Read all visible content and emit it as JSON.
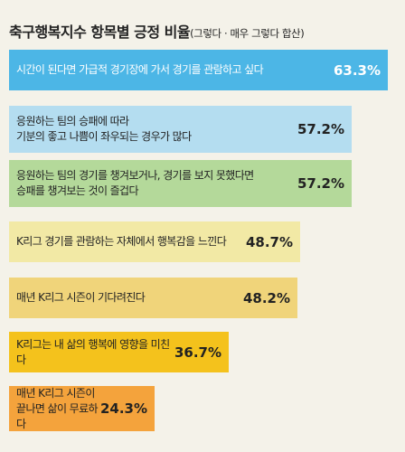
{
  "title": "축구행복지수 항목별 긍정 비율",
  "subtitle": "(그렇다 · 매우 그렇다 합산)",
  "chart_data": {
    "type": "bar",
    "orientation": "horizontal",
    "categories": [
      "시간이 된다면 가급적 경기장에 가서 경기를 관람하고 싶다",
      "응원하는 팀의 승패에 따라\n기분의 좋고 나쁨이 좌우되는 경우가 많다",
      "응원하는 팀의 경기를 챙겨보거나, 경기를 보지 못했다면\n승패를 챙겨보는 것이 즐겁다",
      "K리그 경기를 관람하는 자체에서 행복감을 느낀다",
      "매년 K리그 시즌이 기다려진다",
      "K리그는 내 삶의 행복에 영향을 미친다",
      "매년 K리그 시즌이\n끝나면 삶이 무료하다"
    ],
    "values": [
      63.3,
      57.2,
      57.2,
      48.7,
      48.2,
      36.7,
      24.3
    ],
    "value_labels": [
      "63.3%",
      "57.2%",
      "57.2%",
      "48.7%",
      "48.2%",
      "36.7%",
      "24.3%"
    ],
    "colors": [
      "#4cb6e6",
      "#b4ddf0",
      "#b4d99a",
      "#f2e9a5",
      "#f0d47a",
      "#f4c21c",
      "#f4a33c"
    ],
    "xlim": [
      0,
      66
    ],
    "grid": false
  }
}
